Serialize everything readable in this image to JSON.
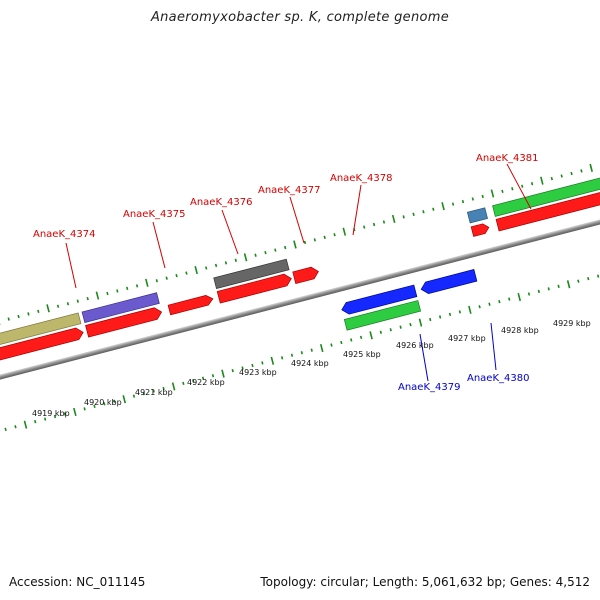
{
  "title": "Anaeromyxobacter sp. K, complete genome",
  "footer": {
    "accession": "Accession: NC_011145",
    "topology": "Topology: circular; Length: 5,061,632 bp; Genes: 4,512"
  },
  "scale": {
    "tick_labels": [
      "4919 kbp",
      "4920 kbp",
      "4921 kbp",
      "4922 kbp",
      "4923 kbp",
      "4924 kbp",
      "4925 kbp",
      "4926 kbp",
      "4927 kbp",
      "4928 kbp",
      "4929 kbp"
    ]
  },
  "gene_labels": [
    {
      "name": "AnaeK_4374",
      "strand": "forward",
      "color": "#d40000"
    },
    {
      "name": "AnaeK_4375",
      "strand": "forward",
      "color": "#d40000"
    },
    {
      "name": "AnaeK_4376",
      "strand": "forward",
      "color": "#d40000"
    },
    {
      "name": "AnaeK_4377",
      "strand": "forward",
      "color": "#d40000"
    },
    {
      "name": "AnaeK_4378",
      "strand": "forward",
      "color": "#d40000"
    },
    {
      "name": "AnaeK_4381",
      "strand": "forward",
      "color": "#d40000"
    },
    {
      "name": "AnaeK_4379",
      "strand": "reverse",
      "color": "#0000c8"
    },
    {
      "name": "AnaeK_4380",
      "strand": "reverse",
      "color": "#0000c8"
    }
  ],
  "colors": {
    "cds_forward": "#ff1a1a",
    "cds_reverse": "#1428ff",
    "cog_green": "#2ecc40",
    "cog_olive": "#bdb76b",
    "cog_purple": "#6a5acd",
    "cog_gray": "#666666",
    "cog_steel": "#4682b4",
    "tick_green": "#1a8a1a",
    "backbone": "#8c8c8c"
  }
}
